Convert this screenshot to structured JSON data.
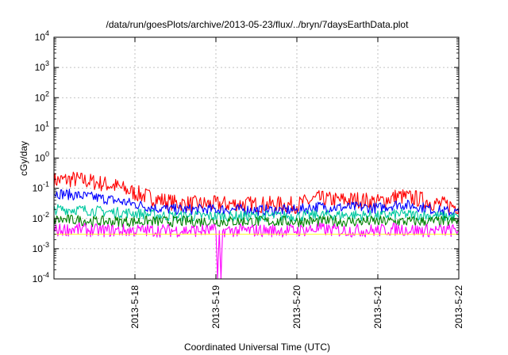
{
  "chart_data": {
    "type": "line",
    "title": "/data/run/goesPlots/archive/2013-05-23/flux/../bryn/7daysEarthData.plot",
    "xlabel": "Coordinated Universal Time (UTC)",
    "ylabel": "cGy/day",
    "y_scale": "log",
    "ylim": [
      0.0001,
      10000
    ],
    "y_ticks": [
      {
        "base": "10",
        "exp": "-4"
      },
      {
        "base": "10",
        "exp": "-3"
      },
      {
        "base": "10",
        "exp": "-2"
      },
      {
        "base": "10",
        "exp": "-1"
      },
      {
        "base": "10",
        "exp": "0"
      },
      {
        "base": "10",
        "exp": "1"
      },
      {
        "base": "10",
        "exp": "2"
      },
      {
        "base": "10",
        "exp": "3"
      },
      {
        "base": "10",
        "exp": "4"
      }
    ],
    "xlim": [
      "2013-05-17T00:00",
      "2013-05-22T00:00"
    ],
    "x_ticks": [
      "2013-5-18",
      "2013-5-19",
      "2013-5-20",
      "2013-5-21",
      "2013-5-22"
    ],
    "grid": true,
    "legend": "none",
    "series": [
      {
        "color": "#ff0000",
        "x": [
          "2013-05-17T00:00",
          "2013-05-17T06:00",
          "2013-05-17T12:00",
          "2013-05-17T18:00",
          "2013-05-18T00:00",
          "2013-05-18T06:00",
          "2013-05-18T12:00",
          "2013-05-18T18:00",
          "2013-05-19T00:00",
          "2013-05-19T06:00",
          "2013-05-19T12:00",
          "2013-05-19T18:00",
          "2013-05-20T00:00",
          "2013-05-20T06:00",
          "2013-05-20T12:00",
          "2013-05-20T18:00",
          "2013-05-21T00:00",
          "2013-05-21T06:00",
          "2013-05-21T12:00",
          "2013-05-21T18:00",
          "2013-05-22T00:00"
        ],
        "y": [
          0.18,
          0.2,
          0.16,
          0.12,
          0.07,
          0.045,
          0.032,
          0.03,
          0.03,
          0.03,
          0.029,
          0.029,
          0.028,
          0.045,
          0.04,
          0.042,
          0.035,
          0.055,
          0.045,
          0.03,
          0.025
        ]
      },
      {
        "color": "#0000ff",
        "x": [
          "2013-05-17T00:00",
          "2013-05-17T06:00",
          "2013-05-17T12:00",
          "2013-05-17T18:00",
          "2013-05-18T00:00",
          "2013-05-18T06:00",
          "2013-05-18T12:00",
          "2013-05-18T18:00",
          "2013-05-19T00:00",
          "2013-05-19T06:00",
          "2013-05-19T12:00",
          "2013-05-19T18:00",
          "2013-05-20T00:00",
          "2013-05-20T06:00",
          "2013-05-20T12:00",
          "2013-05-20T18:00",
          "2013-05-21T00:00",
          "2013-05-21T06:00",
          "2013-05-21T12:00",
          "2013-05-21T18:00",
          "2013-05-22T00:00"
        ],
        "y": [
          0.07,
          0.06,
          0.05,
          0.04,
          0.03,
          0.022,
          0.02,
          0.02,
          0.02,
          0.02,
          0.019,
          0.019,
          0.019,
          0.025,
          0.023,
          0.024,
          0.022,
          0.03,
          0.025,
          0.018,
          0.016
        ]
      },
      {
        "color": "#00c8a0",
        "x": [
          "2013-05-17T00:00",
          "2013-05-17T06:00",
          "2013-05-17T12:00",
          "2013-05-17T18:00",
          "2013-05-18T00:00",
          "2013-05-18T06:00",
          "2013-05-18T12:00",
          "2013-05-18T18:00",
          "2013-05-19T00:00",
          "2013-05-19T06:00",
          "2013-05-19T12:00",
          "2013-05-19T18:00",
          "2013-05-20T00:00",
          "2013-05-20T06:00",
          "2013-05-20T12:00",
          "2013-05-20T18:00",
          "2013-05-21T00:00",
          "2013-05-21T06:00",
          "2013-05-21T12:00",
          "2013-05-21T18:00",
          "2013-05-22T00:00"
        ],
        "y": [
          0.02,
          0.02,
          0.018,
          0.016,
          0.015,
          0.013,
          0.012,
          0.012,
          0.012,
          0.012,
          0.012,
          0.012,
          0.012,
          0.013,
          0.013,
          0.013,
          0.012,
          0.014,
          0.013,
          0.012,
          0.011
        ]
      },
      {
        "color": "#008000",
        "x": [
          "2013-05-17T00:00",
          "2013-05-17T06:00",
          "2013-05-17T12:00",
          "2013-05-17T18:00",
          "2013-05-18T00:00",
          "2013-05-18T06:00",
          "2013-05-18T12:00",
          "2013-05-18T18:00",
          "2013-05-19T00:00",
          "2013-05-19T06:00",
          "2013-05-19T12:00",
          "2013-05-19T18:00",
          "2013-05-20T00:00",
          "2013-05-20T06:00",
          "2013-05-20T12:00",
          "2013-05-20T18:00",
          "2013-05-21T00:00",
          "2013-05-21T06:00",
          "2013-05-21T12:00",
          "2013-05-21T18:00",
          "2013-05-22T00:00"
        ],
        "y": [
          0.009,
          0.009,
          0.008,
          0.008,
          0.008,
          0.008,
          0.008,
          0.008,
          0.008,
          0.008,
          0.008,
          0.008,
          0.008,
          0.008,
          0.008,
          0.008,
          0.008,
          0.008,
          0.008,
          0.008,
          0.008
        ]
      },
      {
        "color": "#ff00ff",
        "x": [
          "2013-05-17T00:00",
          "2013-05-17T06:00",
          "2013-05-17T12:00",
          "2013-05-17T18:00",
          "2013-05-18T00:00",
          "2013-05-18T06:00",
          "2013-05-18T12:00",
          "2013-05-18T18:00",
          "2013-05-19T00:00",
          "2013-05-19T00:30",
          "2013-05-19T01:00",
          "2013-05-19T01:30",
          "2013-05-19T02:00",
          "2013-05-19T06:00",
          "2013-05-19T12:00",
          "2013-05-19T18:00",
          "2013-05-20T00:00",
          "2013-05-20T06:00",
          "2013-05-20T12:00",
          "2013-05-20T18:00",
          "2013-05-21T00:00",
          "2013-05-21T06:00",
          "2013-05-21T12:00",
          "2013-05-21T18:00",
          "2013-05-22T00:00"
        ],
        "y": [
          0.004,
          0.0045,
          0.004,
          0.004,
          0.004,
          0.004,
          0.004,
          0.004,
          0.004,
          0.0001,
          0.004,
          0.0001,
          0.004,
          0.004,
          0.004,
          0.004,
          0.004,
          0.0045,
          0.004,
          0.004,
          0.004,
          0.0045,
          0.004,
          0.004,
          0.004
        ]
      },
      {
        "color": "#ffff00",
        "x": [
          "2013-05-17T00:00",
          "2013-05-17T12:00",
          "2013-05-18T00:00",
          "2013-05-18T12:00",
          "2013-05-19T00:00",
          "2013-05-19T12:00",
          "2013-05-20T00:00",
          "2013-05-20T12:00",
          "2013-05-21T00:00",
          "2013-05-21T12:00",
          "2013-05-22T00:00"
        ],
        "y": [
          0.003,
          0.003,
          0.003,
          0.003,
          0.003,
          0.003,
          0.003,
          0.003,
          0.003,
          0.003,
          0.003
        ]
      }
    ]
  }
}
